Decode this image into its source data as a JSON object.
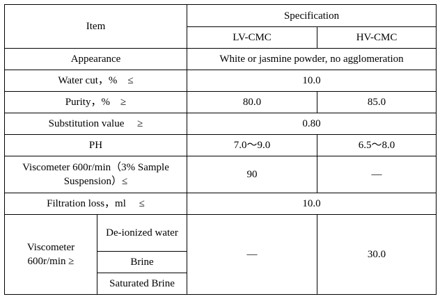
{
  "table": {
    "header": {
      "item": "Item",
      "specification": "Specification",
      "lv": "LV-CMC",
      "hv": "HV-CMC"
    },
    "rows": {
      "appearance": {
        "label": "Appearance",
        "value": "White or jasmine powder, no agglomeration"
      },
      "water_cut": {
        "label": "Water cut，%　≤",
        "value": "10.0"
      },
      "purity": {
        "label": "Purity，%　≥",
        "lv": "80.0",
        "hv": "85.0"
      },
      "substitution": {
        "label": "Substitution value　 ≥",
        "value": "0.80"
      },
      "ph": {
        "label": "PH",
        "lv": "7.0～9.0",
        "hv": "6.5～8.0"
      },
      "viscometer_sample": {
        "label": "Viscometer 600r/min（3% Sample Suspension）≤",
        "lv": "90",
        "hv": "—"
      },
      "filtration": {
        "label": "Filtration loss，ml　 ≤",
        "value": "10.0"
      },
      "viscometer_group": {
        "label": "Viscometer 600r/min ≥",
        "sub_deionized": "De-ionized water",
        "sub_brine": "Brine",
        "sub_saturated": "Saturated Brine",
        "lv": "—",
        "hv": "30.0"
      }
    }
  }
}
